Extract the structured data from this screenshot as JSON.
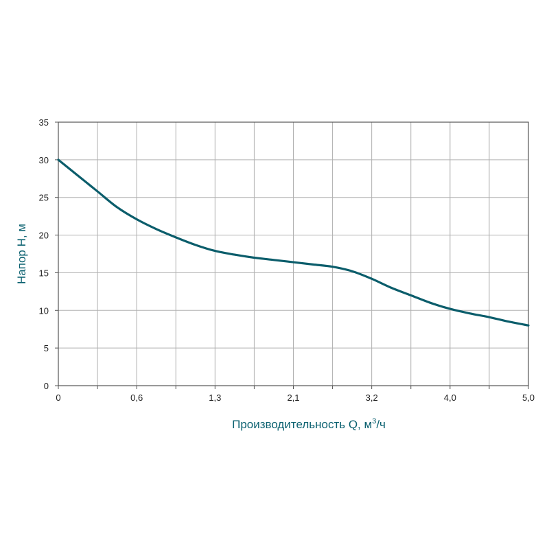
{
  "chart_data": {
    "type": "line",
    "title": "",
    "xlabel": "Производительность Q, м³/ч",
    "xlabel_main": "Производительность Q, м",
    "xlabel_sup": "3",
    "xlabel_tail": "/ч",
    "ylabel": "Напор H, м",
    "xlim": [
      0,
      5.0
    ],
    "ylim": [
      0,
      35
    ],
    "x_tick_labels": [
      "0",
      "0,6",
      "1,3",
      "2,1",
      "3,2",
      "4,0",
      "5,0"
    ],
    "y_ticks": [
      0,
      5,
      10,
      15,
      20,
      25,
      30,
      35
    ],
    "y_tick_labels": [
      "0",
      "5",
      "10",
      "15",
      "20",
      "25",
      "30",
      "35"
    ],
    "grid": true,
    "series": [
      {
        "color": "#0b5d6b",
        "x": [
          0,
          0.208,
          0.417,
          0.625,
          0.833,
          1.042,
          1.25,
          1.458,
          1.667,
          1.875,
          2.083,
          2.292,
          2.5,
          2.708,
          2.917,
          3.125,
          3.333,
          3.542,
          3.75,
          3.958,
          4.167,
          4.375,
          4.583,
          4.792,
          5.0
        ],
        "y": [
          30,
          27.9,
          25.8,
          23.7,
          22.1,
          20.8,
          19.7,
          18.7,
          17.9,
          17.4,
          17.0,
          16.7,
          16.4,
          16.1,
          15.8,
          15.2,
          14.2,
          13.0,
          12.0,
          11.0,
          10.2,
          9.6,
          9.1,
          8.5,
          8.0
        ]
      }
    ]
  },
  "colors": {
    "accent": "#0b5d6b",
    "grid": "#b0b0b0",
    "axis_title": "#0b6170"
  }
}
